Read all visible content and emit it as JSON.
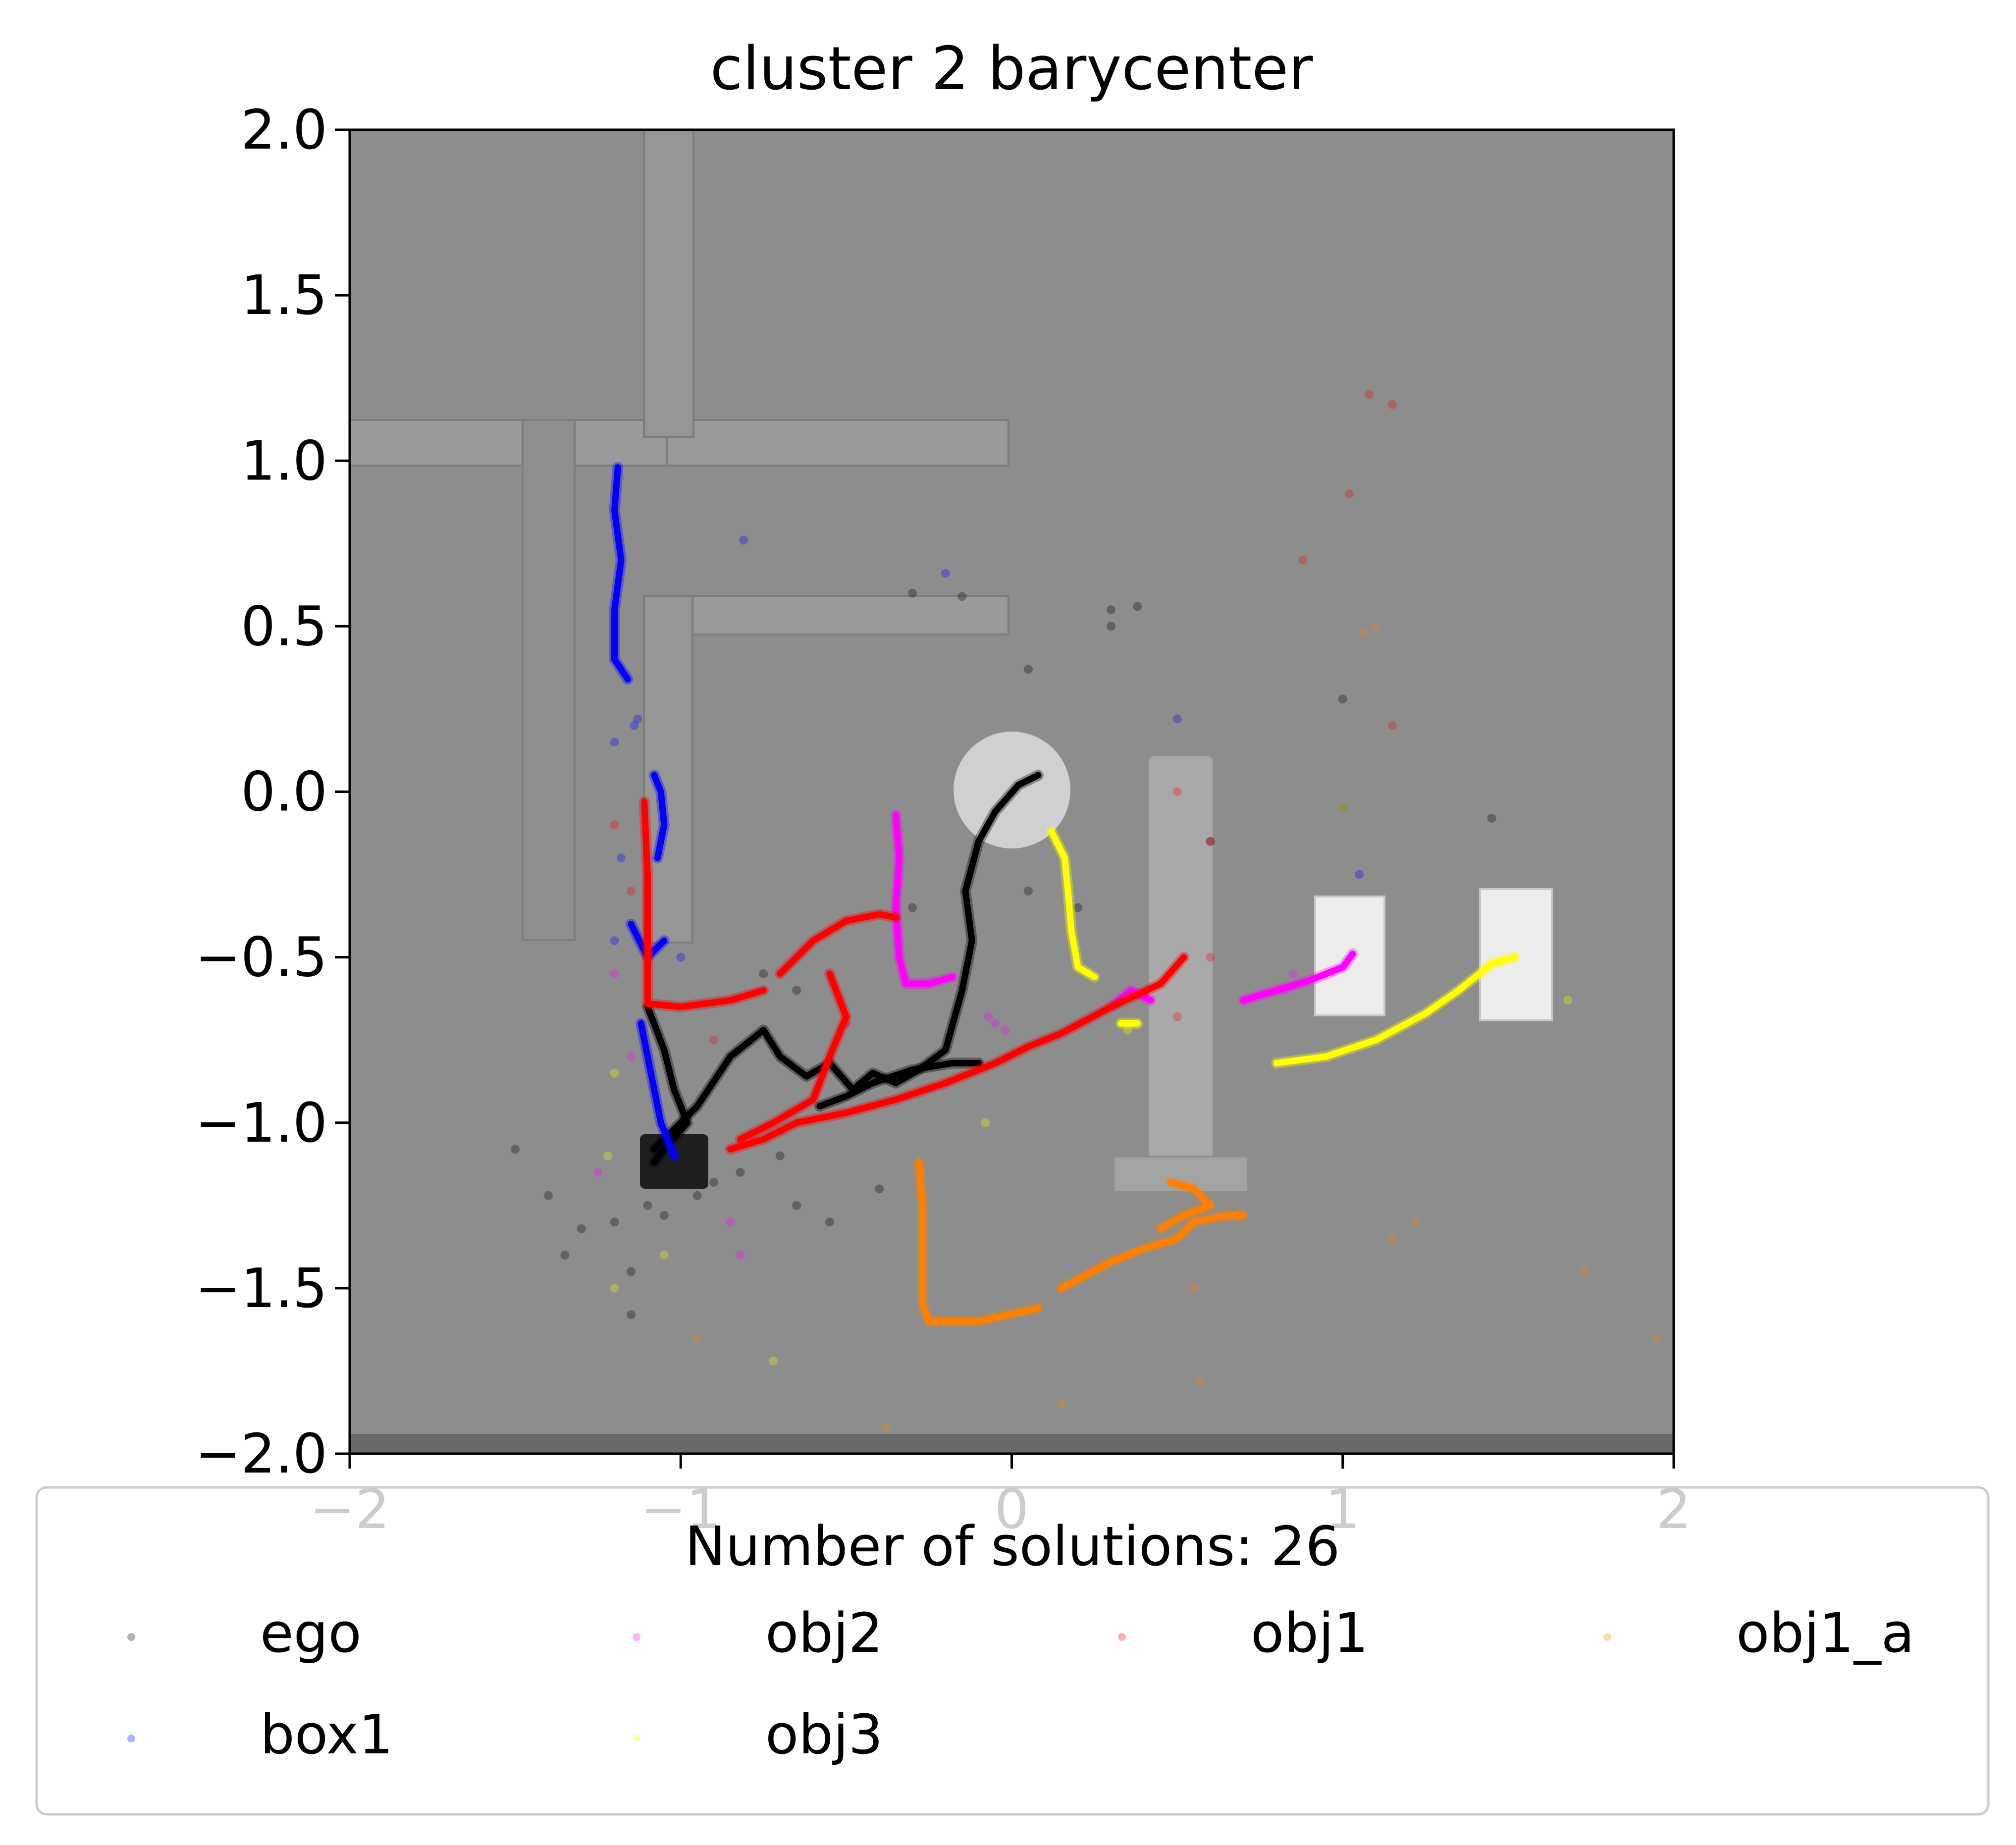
{
  "chart_data": {
    "type": "scatter",
    "title": "cluster 2 barycenter",
    "xlabel": "",
    "ylabel": "",
    "xlim": [
      -2,
      2
    ],
    "ylim": [
      -2,
      2
    ],
    "xticks": [
      "−2",
      "−1",
      "0",
      "1",
      "2"
    ],
    "yticks": [
      "2.0",
      "1.5",
      "1.0",
      "0.5",
      "0.0",
      "−0.5",
      "−1.0",
      "−1.5",
      "−2.0"
    ],
    "grid": false,
    "legend": {
      "title": "Number of solutions: 26",
      "placement": "bottom",
      "columns": 4
    },
    "series": [
      {
        "name": "ego",
        "color": "#000000",
        "paths": [
          [
            [
              -1.1,
              -0.65
            ],
            [
              -1.05,
              -0.78
            ],
            [
              -1.02,
              -0.9
            ],
            [
              -0.98,
              -1.0
            ],
            [
              -1.05,
              -1.08
            ],
            [
              -1.08,
              -1.12
            ]
          ],
          [
            [
              -1.08,
              -1.08
            ],
            [
              -0.95,
              -0.95
            ],
            [
              -0.85,
              -0.8
            ],
            [
              -0.75,
              -0.72
            ],
            [
              -0.7,
              -0.8
            ],
            [
              -0.62,
              -0.86
            ],
            [
              -0.55,
              -0.82
            ],
            [
              -0.48,
              -0.9
            ],
            [
              -0.42,
              -0.85
            ],
            [
              -0.35,
              -0.88
            ],
            [
              -0.28,
              -0.84
            ],
            [
              -0.2,
              -0.78
            ],
            [
              -0.15,
              -0.6
            ],
            [
              -0.12,
              -0.45
            ],
            [
              -0.14,
              -0.3
            ],
            [
              -0.1,
              -0.15
            ],
            [
              -0.05,
              -0.06
            ],
            [
              0.02,
              0.02
            ],
            [
              0.08,
              0.05
            ]
          ],
          [
            [
              -0.58,
              -0.95
            ],
            [
              -0.5,
              -0.92
            ],
            [
              -0.42,
              -0.88
            ],
            [
              -0.3,
              -0.84
            ],
            [
              -0.18,
              -0.82
            ],
            [
              -0.1,
              -0.82
            ]
          ]
        ],
        "scatter": [
          [
            -1.5,
            -1.08
          ],
          [
            -1.4,
            -1.22
          ],
          [
            -1.35,
            -1.4
          ],
          [
            -1.3,
            -1.32
          ],
          [
            -1.2,
            -1.3
          ],
          [
            -1.15,
            -1.45
          ],
          [
            -1.15,
            -1.58
          ],
          [
            -1.1,
            -1.25
          ],
          [
            -1.05,
            -1.28
          ],
          [
            -0.95,
            -1.22
          ],
          [
            -0.9,
            -1.18
          ],
          [
            -0.82,
            -1.15
          ],
          [
            -0.7,
            -1.1
          ],
          [
            -0.55,
            -1.3
          ],
          [
            -0.65,
            -1.25
          ],
          [
            -0.4,
            -1.2
          ],
          [
            -0.75,
            -0.55
          ],
          [
            -0.65,
            -0.6
          ],
          [
            -0.3,
            -0.35
          ],
          [
            0.05,
            -0.3
          ],
          [
            0.2,
            -0.35
          ],
          [
            0.3,
            0.55
          ],
          [
            0.38,
            0.56
          ],
          [
            0.3,
            0.5
          ],
          [
            0.05,
            0.37
          ],
          [
            -0.3,
            0.6
          ],
          [
            -0.15,
            0.59
          ],
          [
            1.0,
            0.28
          ],
          [
            1.45,
            -0.08
          ],
          [
            1.0,
            -0.05
          ],
          [
            0.6,
            -0.15
          ]
        ]
      },
      {
        "name": "box1",
        "color": "#0000ff",
        "paths": [
          [
            [
              -1.19,
              0.98
            ],
            [
              -1.2,
              0.85
            ],
            [
              -1.18,
              0.7
            ],
            [
              -1.2,
              0.55
            ],
            [
              -1.2,
              0.4
            ],
            [
              -1.16,
              0.34
            ]
          ],
          [
            [
              -1.08,
              0.05
            ],
            [
              -1.06,
              0.0
            ],
            [
              -1.05,
              -0.1
            ],
            [
              -1.07,
              -0.2
            ]
          ],
          [
            [
              -1.15,
              -0.4
            ],
            [
              -1.1,
              -0.5
            ],
            [
              -1.05,
              -0.45
            ]
          ],
          [
            [
              -1.12,
              -0.7
            ],
            [
              -1.1,
              -0.8
            ],
            [
              -1.08,
              -0.9
            ],
            [
              -1.06,
              -1.0
            ],
            [
              -1.04,
              -1.05
            ],
            [
              -1.02,
              -1.1
            ]
          ]
        ],
        "scatter": [
          [
            -1.13,
            0.22
          ],
          [
            -1.14,
            0.2
          ],
          [
            -1.2,
            0.15
          ],
          [
            -0.81,
            0.76
          ],
          [
            -0.2,
            0.66
          ],
          [
            0.5,
            0.22
          ],
          [
            1.05,
            -0.25
          ],
          [
            -1.2,
            -0.45
          ],
          [
            -1.0,
            -0.5
          ],
          [
            -1.18,
            -0.2
          ]
        ]
      },
      {
        "name": "obj2",
        "color": "#ff00ff",
        "paths": [
          [
            [
              -0.35,
              -0.07
            ],
            [
              -0.34,
              -0.2
            ],
            [
              -0.35,
              -0.35
            ],
            [
              -0.34,
              -0.5
            ],
            [
              -0.32,
              -0.58
            ],
            [
              -0.25,
              -0.58
            ],
            [
              -0.18,
              -0.56
            ]
          ],
          [
            [
              0.3,
              -0.65
            ],
            [
              0.36,
              -0.6
            ],
            [
              0.42,
              -0.63
            ]
          ],
          [
            [
              0.7,
              -0.63
            ],
            [
              0.8,
              -0.6
            ],
            [
              0.9,
              -0.57
            ],
            [
              1.0,
              -0.53
            ],
            [
              1.03,
              -0.49
            ]
          ]
        ],
        "scatter": [
          [
            -1.25,
            -1.15
          ],
          [
            -0.85,
            -1.3
          ],
          [
            -0.82,
            -1.4
          ],
          [
            -1.15,
            -0.8
          ],
          [
            -1.2,
            -0.55
          ],
          [
            0.85,
            -0.55
          ],
          [
            0.82,
            -0.6
          ],
          [
            -0.07,
            -0.68
          ],
          [
            -0.02,
            -0.72
          ],
          [
            -0.05,
            -0.7
          ]
        ]
      },
      {
        "name": "obj1",
        "color": "#ff0000",
        "paths": [
          [
            [
              -1.11,
              -0.03
            ],
            [
              -1.1,
              -0.25
            ],
            [
              -1.1,
              -0.45
            ],
            [
              -1.1,
              -0.64
            ],
            [
              -1.0,
              -0.65
            ],
            [
              -0.85,
              -0.63
            ],
            [
              -0.75,
              -0.6
            ]
          ],
          [
            [
              -0.7,
              -0.55
            ],
            [
              -0.6,
              -0.45
            ],
            [
              -0.5,
              -0.39
            ],
            [
              -0.4,
              -0.37
            ],
            [
              -0.35,
              -0.38
            ]
          ],
          [
            [
              -0.85,
              -1.08
            ],
            [
              -0.75,
              -1.05
            ],
            [
              -0.65,
              -1.0
            ],
            [
              -0.5,
              -0.97
            ],
            [
              -0.35,
              -0.93
            ],
            [
              -0.2,
              -0.88
            ],
            [
              -0.05,
              -0.82
            ],
            [
              0.05,
              -0.77
            ],
            [
              0.15,
              -0.73
            ],
            [
              0.3,
              -0.65
            ],
            [
              0.45,
              -0.58
            ],
            [
              0.52,
              -0.5
            ]
          ],
          [
            [
              -0.82,
              -1.05
            ],
            [
              -0.72,
              -1.0
            ],
            [
              -0.6,
              -0.93
            ],
            [
              -0.55,
              -0.8
            ],
            [
              -0.5,
              -0.68
            ],
            [
              -0.55,
              -0.55
            ]
          ]
        ],
        "scatter": [
          [
            1.15,
            1.17
          ],
          [
            1.08,
            1.2
          ],
          [
            1.02,
            0.9
          ],
          [
            0.88,
            0.7
          ],
          [
            1.15,
            0.2
          ],
          [
            0.5,
            0.0
          ],
          [
            0.6,
            -0.15
          ],
          [
            -1.2,
            -0.1
          ],
          [
            -1.15,
            -0.3
          ],
          [
            -0.5,
            -0.7
          ],
          [
            -0.9,
            -0.75
          ],
          [
            0.5,
            -0.68
          ],
          [
            0.6,
            -0.5
          ]
        ]
      },
      {
        "name": "obj3",
        "color": "#ffff00",
        "paths": [
          [
            [
              0.12,
              -0.12
            ],
            [
              0.16,
              -0.2
            ],
            [
              0.17,
              -0.3
            ],
            [
              0.18,
              -0.42
            ],
            [
              0.2,
              -0.53
            ],
            [
              0.25,
              -0.56
            ]
          ],
          [
            [
              0.33,
              -0.7
            ],
            [
              0.38,
              -0.7
            ]
          ],
          [
            [
              0.8,
              -0.82
            ],
            [
              0.95,
              -0.8
            ],
            [
              1.1,
              -0.75
            ],
            [
              1.25,
              -0.67
            ],
            [
              1.35,
              -0.6
            ],
            [
              1.45,
              -0.52
            ],
            [
              1.52,
              -0.5
            ]
          ]
        ],
        "scatter": [
          [
            -1.2,
            -0.85
          ],
          [
            -1.22,
            -1.1
          ],
          [
            -1.2,
            -1.5
          ],
          [
            -1.05,
            -1.4
          ],
          [
            -0.72,
            -1.72
          ],
          [
            1.0,
            -0.05
          ],
          [
            1.68,
            -0.63
          ],
          [
            -0.08,
            -1.0
          ],
          [
            0.35,
            -0.72
          ]
        ]
      },
      {
        "name": "obj1_a",
        "color": "#ff8000",
        "paths": [
          [
            [
              -0.28,
              -1.12
            ],
            [
              -0.27,
              -1.25
            ],
            [
              -0.27,
              -1.4
            ],
            [
              -0.27,
              -1.55
            ],
            [
              -0.25,
              -1.6
            ],
            [
              -0.1,
              -1.6
            ],
            [
              0.08,
              -1.56
            ]
          ],
          [
            [
              0.15,
              -1.5
            ],
            [
              0.3,
              -1.42
            ],
            [
              0.4,
              -1.38
            ],
            [
              0.5,
              -1.35
            ],
            [
              0.55,
              -1.3
            ],
            [
              0.65,
              -1.28
            ],
            [
              0.7,
              -1.28
            ]
          ],
          [
            [
              0.48,
              -1.18
            ],
            [
              0.55,
              -1.2
            ],
            [
              0.6,
              -1.25
            ],
            [
              0.52,
              -1.28
            ],
            [
              0.45,
              -1.32
            ]
          ]
        ],
        "scatter": [
          [
            1.06,
            0.48
          ],
          [
            1.1,
            0.5
          ],
          [
            1.22,
            -1.3
          ],
          [
            1.73,
            -1.45
          ],
          [
            1.95,
            -1.65
          ],
          [
            1.15,
            -1.35
          ],
          [
            0.57,
            -1.78
          ],
          [
            -0.38,
            -1.92
          ],
          [
            -0.95,
            -1.65
          ],
          [
            0.15,
            -1.85
          ],
          [
            0.55,
            -1.5
          ]
        ]
      }
    ]
  }
}
